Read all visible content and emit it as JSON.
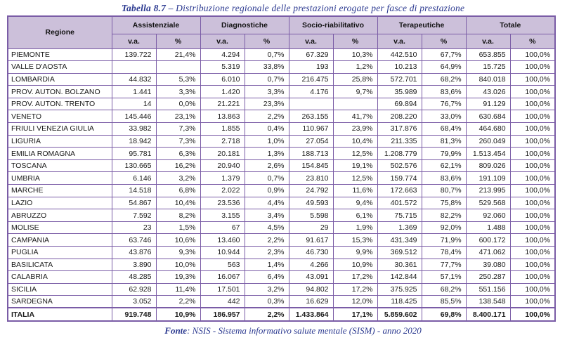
{
  "title": {
    "number": "Tabella 8.7",
    "text": " – Distribuzione regionale delle prestazioni erogate per fasce di prestazione"
  },
  "table": {
    "corner_header": "Regione",
    "groups": [
      {
        "label": "Assistenziale"
      },
      {
        "label": "Diagnostiche"
      },
      {
        "label": "Socio-riabilitativo"
      },
      {
        "label": "Terapeutiche"
      },
      {
        "label": "Totale"
      }
    ],
    "subheaders": {
      "va": "v.a.",
      "pct": "%"
    },
    "rows": [
      {
        "region": "PIEMONTE",
        "values": [
          "139.722",
          "21,4%",
          "4.294",
          "0,7%",
          "67.329",
          "10,3%",
          "442.510",
          "67,7%",
          "653.855",
          "100,0%"
        ]
      },
      {
        "region": "VALLE D'AOSTA",
        "values": [
          "",
          "",
          "5.319",
          "33,8%",
          "193",
          "1,2%",
          "10.213",
          "64,9%",
          "15.725",
          "100,0%"
        ]
      },
      {
        "region": "LOMBARDIA",
        "values": [
          "44.832",
          "5,3%",
          "6.010",
          "0,7%",
          "216.475",
          "25,8%",
          "572.701",
          "68,2%",
          "840.018",
          "100,0%"
        ]
      },
      {
        "region": "PROV. AUTON. BOLZANO",
        "values": [
          "1.441",
          "3,3%",
          "1.420",
          "3,3%",
          "4.176",
          "9,7%",
          "35.989",
          "83,6%",
          "43.026",
          "100,0%"
        ]
      },
      {
        "region": "PROV. AUTON. TRENTO",
        "values": [
          "14",
          "0,0%",
          "21.221",
          "23,3%",
          "",
          "",
          "69.894",
          "76,7%",
          "91.129",
          "100,0%"
        ]
      },
      {
        "region": "VENETO",
        "values": [
          "145.446",
          "23,1%",
          "13.863",
          "2,2%",
          "263.155",
          "41,7%",
          "208.220",
          "33,0%",
          "630.684",
          "100,0%"
        ]
      },
      {
        "region": "FRIULI VENEZIA GIULIA",
        "values": [
          "33.982",
          "7,3%",
          "1.855",
          "0,4%",
          "110.967",
          "23,9%",
          "317.876",
          "68,4%",
          "464.680",
          "100,0%"
        ]
      },
      {
        "region": "LIGURIA",
        "values": [
          "18.942",
          "7,3%",
          "2.718",
          "1,0%",
          "27.054",
          "10,4%",
          "211.335",
          "81,3%",
          "260.049",
          "100,0%"
        ]
      },
      {
        "region": "EMILIA ROMAGNA",
        "values": [
          "95.781",
          "6,3%",
          "20.181",
          "1,3%",
          "188.713",
          "12,5%",
          "1.208.779",
          "79,9%",
          "1.513.454",
          "100,0%"
        ]
      },
      {
        "region": "TOSCANA",
        "values": [
          "130.665",
          "16,2%",
          "20.940",
          "2,6%",
          "154.845",
          "19,1%",
          "502.576",
          "62,1%",
          "809.026",
          "100,0%"
        ]
      },
      {
        "region": "UMBRIA",
        "values": [
          "6.146",
          "3,2%",
          "1.379",
          "0,7%",
          "23.810",
          "12,5%",
          "159.774",
          "83,6%",
          "191.109",
          "100,0%"
        ]
      },
      {
        "region": "MARCHE",
        "values": [
          "14.518",
          "6,8%",
          "2.022",
          "0,9%",
          "24.792",
          "11,6%",
          "172.663",
          "80,7%",
          "213.995",
          "100,0%"
        ]
      },
      {
        "region": "LAZIO",
        "values": [
          "54.867",
          "10,4%",
          "23.536",
          "4,4%",
          "49.593",
          "9,4%",
          "401.572",
          "75,8%",
          "529.568",
          "100,0%"
        ]
      },
      {
        "region": "ABRUZZO",
        "values": [
          "7.592",
          "8,2%",
          "3.155",
          "3,4%",
          "5.598",
          "6,1%",
          "75.715",
          "82,2%",
          "92.060",
          "100,0%"
        ]
      },
      {
        "region": "MOLISE",
        "values": [
          "23",
          "1,5%",
          "67",
          "4,5%",
          "29",
          "1,9%",
          "1.369",
          "92,0%",
          "1.488",
          "100,0%"
        ]
      },
      {
        "region": "CAMPANIA",
        "values": [
          "63.746",
          "10,6%",
          "13.460",
          "2,2%",
          "91.617",
          "15,3%",
          "431.349",
          "71,9%",
          "600.172",
          "100,0%"
        ]
      },
      {
        "region": "PUGLIA",
        "values": [
          "43.876",
          "9,3%",
          "10.944",
          "2,3%",
          "46.730",
          "9,9%",
          "369.512",
          "78,4%",
          "471.062",
          "100,0%"
        ]
      },
      {
        "region": "BASILICATA",
        "values": [
          "3.890",
          "10,0%",
          "563",
          "1,4%",
          "4.266",
          "10,9%",
          "30.361",
          "77,7%",
          "39.080",
          "100,0%"
        ]
      },
      {
        "region": "CALABRIA",
        "values": [
          "48.285",
          "19,3%",
          "16.067",
          "6,4%",
          "43.091",
          "17,2%",
          "142.844",
          "57,1%",
          "250.287",
          "100,0%"
        ]
      },
      {
        "region": "SICILIA",
        "values": [
          "62.928",
          "11,4%",
          "17.501",
          "3,2%",
          "94.802",
          "17,2%",
          "375.925",
          "68,2%",
          "551.156",
          "100,0%"
        ]
      },
      {
        "region": "SARDEGNA",
        "values": [
          "3.052",
          "2,2%",
          "442",
          "0,3%",
          "16.629",
          "12,0%",
          "118.425",
          "85,5%",
          "138.548",
          "100,0%"
        ]
      }
    ],
    "total_row": {
      "region": "ITALIA",
      "values": [
        "919.748",
        "10,9%",
        "186.957",
        "2,2%",
        "1.433.864",
        "17,1%",
        "5.859.602",
        "69,8%",
        "8.400.171",
        "100,0%"
      ]
    }
  },
  "footer": {
    "label": "Fonte",
    "text": ": NSIS - Sistema informativo salute mentale (SISM) - anno 2020"
  },
  "colors": {
    "border_purple": "#7A5CA6",
    "header_fill": "#CCC0DA",
    "accent_text_blue": "#2B3990"
  }
}
